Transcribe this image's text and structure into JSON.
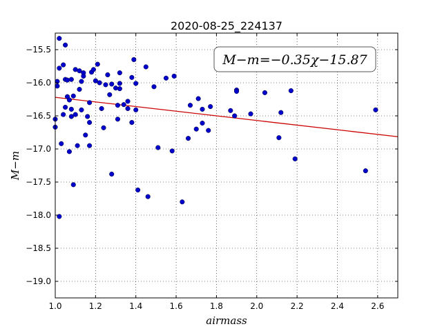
{
  "chart_data": {
    "type": "scatter",
    "title": "2020-08-25_224137",
    "xlabel": "airmass",
    "ylabel": "M−m",
    "xlim": [
      1.0,
      2.7
    ],
    "ylim": [
      -15.25,
      -19.25
    ],
    "y_inverted": true,
    "grid": true,
    "xticks": [
      "1.0",
      "1.2",
      "1.4",
      "1.6",
      "1.8",
      "2.0",
      "2.2",
      "2.4",
      "2.6"
    ],
    "xtick_values": [
      1.0,
      1.2,
      1.4,
      1.6,
      1.8,
      2.0,
      2.2,
      2.4,
      2.6
    ],
    "yticks": [
      "−15.5",
      "−16.0",
      "−16.5",
      "−17.0",
      "−17.5",
      "−18.0",
      "−18.5",
      "−19.0"
    ],
    "ytick_values": [
      -15.5,
      -16.0,
      -16.5,
      -17.0,
      -17.5,
      -18.0,
      -18.5,
      -19.0
    ],
    "annotation": "M−m=−0.35χ−15.87",
    "colors": {
      "points": "#0000cc",
      "fit": "#cc0000"
    },
    "series": [
      {
        "kind": "scatter",
        "x": [
          1.0,
          1.0,
          1.01,
          1.02,
          1.01,
          1.02,
          1.02,
          1.03,
          1.04,
          1.04,
          1.05,
          1.05,
          1.05,
          1.06,
          1.06,
          1.07,
          1.07,
          1.08,
          1.08,
          1.08,
          1.09,
          1.09,
          1.1,
          1.1,
          1.11,
          1.12,
          1.12,
          1.13,
          1.13,
          1.14,
          1.14,
          1.15,
          1.16,
          1.17,
          1.17,
          1.17,
          1.18,
          1.19,
          1.2,
          1.21,
          1.22,
          1.23,
          1.24,
          1.25,
          1.26,
          1.27,
          1.28,
          1.28,
          1.3,
          1.31,
          1.31,
          1.32,
          1.32,
          1.32,
          1.34,
          1.36,
          1.36,
          1.38,
          1.38,
          1.39,
          1.4,
          1.4,
          1.41,
          1.45,
          1.46,
          1.49,
          1.51,
          1.55,
          1.58,
          1.59,
          1.63,
          1.66,
          1.67,
          1.7,
          1.71,
          1.73,
          1.73,
          1.76,
          1.77,
          1.87,
          1.89,
          1.9,
          1.9,
          1.97,
          2.04,
          2.11,
          2.12,
          2.17,
          2.19,
          2.54,
          2.59
        ],
        "y": [
          -16.55,
          -16.67,
          -15.98,
          -15.78,
          -16.05,
          -18.02,
          -15.33,
          -16.92,
          -15.73,
          -16.48,
          -16.37,
          -15.43,
          -15.95,
          -16.21,
          -15.96,
          -16.26,
          -17.04,
          -15.95,
          -16.51,
          -16.4,
          -16.2,
          -17.54,
          -16.48,
          -15.8,
          -16.95,
          -16.1,
          -15.82,
          -16.41,
          -15.98,
          -15.85,
          -15.9,
          -16.79,
          -16.51,
          -16.6,
          -16.3,
          -16.95,
          -15.84,
          -15.8,
          -15.97,
          -15.72,
          -16.0,
          -16.39,
          -16.68,
          -16.03,
          -15.88,
          -16.18,
          -16.02,
          -17.38,
          -16.08,
          -16.34,
          -16.55,
          -15.85,
          -16.01,
          -16.09,
          -16.33,
          -16.28,
          -16.39,
          -16.6,
          -15.92,
          -15.65,
          -16.41,
          -16.01,
          -17.62,
          -15.76,
          -17.72,
          -16.06,
          -16.98,
          -15.93,
          -17.03,
          -15.9,
          -17.8,
          -16.84,
          -16.34,
          -16.7,
          -16.24,
          -16.61,
          -16.4,
          -16.72,
          -16.36,
          -16.42,
          -16.5,
          -16.11,
          -16.13,
          -16.47,
          -16.15,
          -16.83,
          -16.45,
          -16.12,
          -17.15,
          -17.33,
          -16.41
        ]
      },
      {
        "kind": "line",
        "x": [
          1.0,
          2.7
        ],
        "y": [
          -16.22,
          -16.815
        ]
      }
    ]
  }
}
